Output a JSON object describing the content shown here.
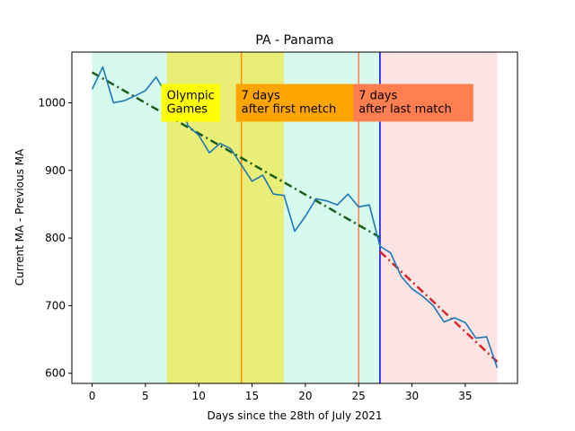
{
  "chart_data": {
    "type": "line",
    "title": "PA - Panama",
    "xlabel": "Days since the 28th of July 2021",
    "ylabel": "Current MA - Previous MA",
    "xlim": [
      -1.9,
      39.9
    ],
    "ylim": [
      585,
      1075
    ],
    "xticks": [
      0,
      5,
      10,
      15,
      20,
      25,
      30,
      35
    ],
    "yticks": [
      600,
      700,
      800,
      900,
      1000
    ],
    "grid": false,
    "legend": "none",
    "series": [
      {
        "x": [
          0,
          1,
          2,
          3,
          4,
          5,
          6,
          7,
          8,
          9,
          10,
          11,
          12,
          13,
          14,
          15,
          16,
          17,
          18,
          19,
          20,
          21,
          22,
          23,
          24,
          25,
          26,
          27,
          28,
          29,
          30,
          31,
          32,
          33,
          34,
          35,
          36,
          37,
          38
        ],
        "values": [
          1020,
          1053,
          1000,
          1003,
          1010,
          1018,
          1038,
          1012,
          1014,
          966,
          952,
          926,
          940,
          932,
          908,
          884,
          893,
          865,
          863,
          810,
          832,
          858,
          855,
          849,
          865,
          846,
          849,
          788,
          778,
          743,
          725,
          714,
          700,
          676,
          682,
          675,
          652,
          654,
          608
        ],
        "color": "#1f77b4"
      }
    ],
    "trend_lines": [
      {
        "x": [
          0,
          27
        ],
        "y": [
          1045,
          801
        ],
        "color": "#1a5c1a",
        "style": "dash-dot"
      },
      {
        "x": [
          27,
          38
        ],
        "y": [
          780,
          617
        ],
        "color": "#d62728",
        "style": "dash-dot"
      }
    ],
    "shaded_regions": [
      {
        "x": [
          0,
          7
        ],
        "color": "#d6fbee"
      },
      {
        "x": [
          7,
          18
        ],
        "color": "#e8ee78"
      },
      {
        "x": [
          18,
          27
        ],
        "color": "#d6fbee"
      },
      {
        "x": [
          27,
          38
        ],
        "color": "#fde4e4"
      }
    ],
    "vertical_lines": [
      {
        "x": 14,
        "color": "#ff8c00"
      },
      {
        "x": 25,
        "color": "#ff7f50"
      },
      {
        "x": 27,
        "color": "#0000ff"
      }
    ],
    "annotations": [
      {
        "lines": [
          "Olympic",
          "Games"
        ],
        "x": 7,
        "y": 1000,
        "bg": "#ffff00"
      },
      {
        "lines": [
          "7 days",
          "after first metch"
        ],
        "x": 14,
        "y": 1000,
        "bg": "#ffa500"
      },
      {
        "lines": [
          "7 days",
          "after last match"
        ],
        "x": 25,
        "y": 1000,
        "bg": "#ff7f50"
      }
    ]
  }
}
